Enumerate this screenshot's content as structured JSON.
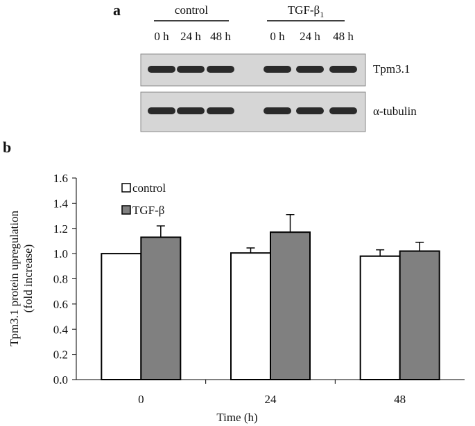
{
  "panel_a": {
    "label": "a",
    "groups": [
      {
        "name": "control",
        "lanes": [
          "0 h",
          "24 h",
          "48 h"
        ]
      },
      {
        "name": "TGF-β",
        "subscript": "1",
        "lanes": [
          "0 h",
          "24 h",
          "48 h"
        ]
      }
    ],
    "rows": [
      "Tpm3.1",
      "α-tubulin"
    ]
  },
  "chart_data": {
    "type": "bar",
    "panel_label": "b",
    "y_label": [
      "Tpm3.1 protein upregulation",
      "(fold increase)"
    ],
    "x_label": "Time (h)",
    "categories": [
      "0",
      "24",
      "48"
    ],
    "series": [
      {
        "name": "control",
        "color": "#ffffff",
        "values": [
          1.0,
          1.005,
          0.98
        ],
        "errors": [
          null,
          0.04,
          0.05
        ]
      },
      {
        "name": "TGF-β",
        "color": "#808080",
        "values": [
          1.13,
          1.17,
          1.02
        ],
        "errors": [
          0.09,
          0.14,
          0.07
        ]
      }
    ],
    "ylim": [
      0,
      1.6
    ],
    "yticks": [
      {
        "value": 0,
        "label": "0.0"
      },
      0.2,
      0.4,
      0.6,
      0.8,
      {
        "value": 1,
        "label": "1.0"
      },
      1.2,
      1.4,
      1.6
    ],
    "legend": "top-left"
  }
}
